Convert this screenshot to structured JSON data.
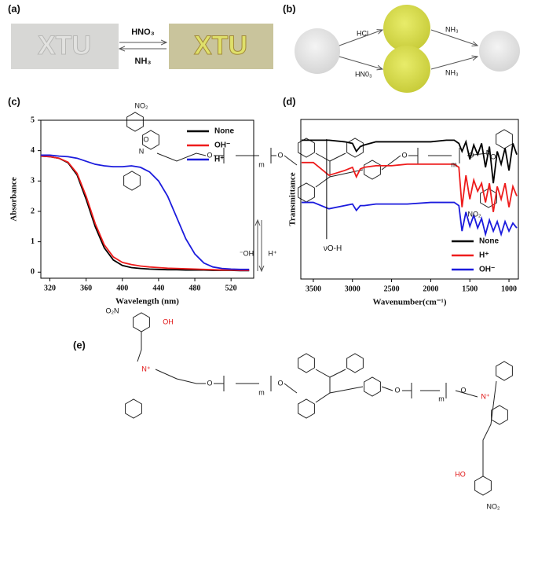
{
  "panel_labels": [
    "(a)",
    "(b)",
    "(c)",
    "(d)",
    "(e)"
  ],
  "panel_a": {
    "left_photo_text": "XTU",
    "right_photo_text": "XTU",
    "forward_reagent": "HNO₃",
    "reverse_reagent": "NH₃"
  },
  "panel_b": {
    "upper_left_reagent": "HCl",
    "lower_left_reagent": "HN0₃",
    "upper_right_reagent": "NH₃",
    "lower_right_reagent": "NH₃"
  },
  "chart_data": [
    {
      "type": "line",
      "x_label": "Wavelength (nm)",
      "y_label": "Absorbance",
      "x": [
        310,
        320,
        330,
        340,
        350,
        360,
        370,
        380,
        390,
        400,
        410,
        420,
        430,
        440,
        450,
        460,
        470,
        480,
        490,
        500,
        510,
        520,
        530,
        540
      ],
      "series": [
        {
          "name": "None",
          "color": "#000000",
          "values": [
            3.82,
            3.8,
            3.75,
            3.6,
            3.2,
            2.4,
            1.5,
            0.8,
            0.4,
            0.22,
            0.15,
            0.12,
            0.1,
            0.09,
            0.08,
            0.08,
            0.07,
            0.07,
            0.07,
            0.06,
            0.06,
            0.06,
            0.05,
            0.05
          ]
        },
        {
          "name": "OH⁻",
          "color": "#ee1c1c",
          "values": [
            3.82,
            3.8,
            3.75,
            3.62,
            3.25,
            2.5,
            1.6,
            0.9,
            0.5,
            0.32,
            0.25,
            0.2,
            0.17,
            0.15,
            0.13,
            0.12,
            0.11,
            0.1,
            0.09,
            0.08,
            0.07,
            0.07,
            0.06,
            0.06
          ]
        },
        {
          "name": "H⁺",
          "color": "#1b1bdd",
          "values": [
            3.85,
            3.85,
            3.82,
            3.8,
            3.75,
            3.65,
            3.55,
            3.5,
            3.47,
            3.47,
            3.5,
            3.45,
            3.3,
            3.0,
            2.5,
            1.8,
            1.1,
            0.6,
            0.3,
            0.17,
            0.12,
            0.1,
            0.09,
            0.09
          ]
        }
      ],
      "xlim": [
        310,
        545
      ],
      "ylim": [
        -0.2,
        5
      ],
      "xticks": [
        320,
        360,
        400,
        440,
        480,
        520
      ],
      "yticks": [
        0,
        1,
        2,
        3,
        4,
        5
      ],
      "legend": "upper right"
    },
    {
      "type": "line",
      "x_label": "Wavenumber(cm⁻¹)",
      "y_label": "Transmittance",
      "x": [
        3650,
        3500,
        3300,
        3100,
        3000,
        2950,
        2900,
        2850,
        2700,
        2500,
        2300,
        2000,
        1800,
        1700,
        1640,
        1600,
        1550,
        1500,
        1450,
        1400,
        1350,
        1300,
        1250,
        1200,
        1150,
        1100,
        1050,
        1000,
        950,
        900
      ],
      "series": [
        {
          "name": "None",
          "color": "#000000",
          "values": [
            0.87,
            0.87,
            0.87,
            0.86,
            0.85,
            0.8,
            0.83,
            0.84,
            0.86,
            0.86,
            0.86,
            0.86,
            0.87,
            0.87,
            0.85,
            0.8,
            0.86,
            0.75,
            0.84,
            0.78,
            0.85,
            0.7,
            0.83,
            0.6,
            0.8,
            0.72,
            0.82,
            0.68,
            0.85,
            0.78
          ]
        },
        {
          "name": "H⁺",
          "color": "#ee1c1c",
          "values": [
            0.73,
            0.73,
            0.65,
            0.68,
            0.7,
            0.64,
            0.69,
            0.7,
            0.71,
            0.71,
            0.72,
            0.72,
            0.72,
            0.72,
            0.7,
            0.45,
            0.65,
            0.5,
            0.62,
            0.55,
            0.6,
            0.48,
            0.6,
            0.42,
            0.58,
            0.5,
            0.6,
            0.45,
            0.58,
            0.52
          ]
        },
        {
          "name": "OH⁻",
          "color": "#1b1bdd",
          "values": [
            0.48,
            0.48,
            0.44,
            0.46,
            0.47,
            0.43,
            0.46,
            0.46,
            0.47,
            0.47,
            0.47,
            0.48,
            0.48,
            0.48,
            0.46,
            0.3,
            0.42,
            0.33,
            0.4,
            0.32,
            0.38,
            0.28,
            0.37,
            0.3,
            0.36,
            0.28,
            0.36,
            0.3,
            0.35,
            0.32
          ]
        }
      ],
      "xlim": [
        3660,
        880
      ],
      "ylim": [
        0,
        1
      ],
      "xticks": [
        3500,
        3000,
        2500,
        2000,
        1500,
        1000
      ],
      "legend": "lower right",
      "annotation": {
        "text": "νO-H",
        "x": 3330,
        "y": 0.25
      }
    }
  ],
  "panel_e": {
    "top_labels": [
      "NO₂",
      "O",
      "N",
      "O",
      "m",
      "O",
      "O",
      "m",
      "O",
      "O",
      "N",
      "NO₂"
    ],
    "reagent_labels": [
      "⁻OH",
      "H⁺"
    ],
    "bottom_labels": [
      "O₂N",
      "OH",
      "N⁺",
      "O",
      "m",
      "O",
      "O",
      "m",
      "O",
      "N⁺",
      "HO",
      "NO₂"
    ]
  }
}
